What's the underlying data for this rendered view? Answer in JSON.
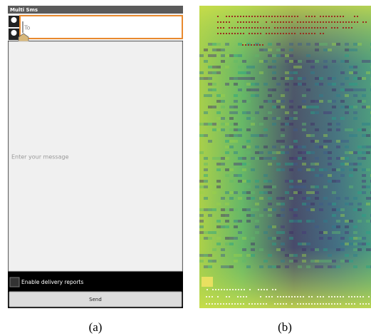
{
  "panel_a": {
    "app_title": "Multi Sms",
    "to_hint": "To",
    "message_hint": "Enter your message",
    "delivery_checkbox": "Enable delivery reports",
    "send_button": "Send"
  },
  "captions": [
    "(a)",
    "(b)"
  ]
}
